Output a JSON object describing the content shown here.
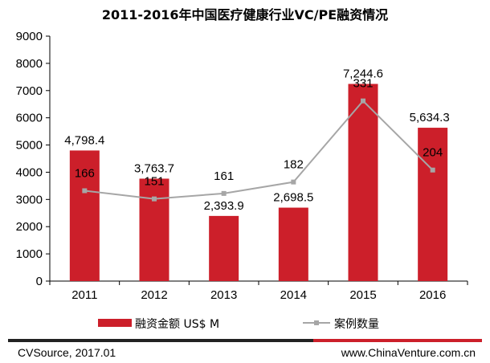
{
  "chart_data": {
    "type": "bar",
    "title": "2011-2016年中国医疗健康行业VC/PE融资情况",
    "categories": [
      "2011",
      "2012",
      "2013",
      "2014",
      "2015",
      "2016"
    ],
    "ylim": [
      0,
      9000
    ],
    "yticks": [
      "0",
      "1000",
      "2000",
      "3000",
      "4000",
      "5000",
      "6000",
      "7000",
      "8000",
      "9000"
    ],
    "grid": false,
    "legend_position": "bottom",
    "series": [
      {
        "name": "融资金额 US$ M",
        "type": "bar",
        "color": "#cc1f2a",
        "values": [
          4798.4,
          3763.7,
          2393.9,
          2698.5,
          7244.6,
          5634.3
        ],
        "labels": [
          "4,798.4",
          "3,763.7",
          "2,393.9",
          "2,698.5",
          "7,244.6",
          "5,634.3"
        ]
      },
      {
        "name": "案例数量",
        "type": "line",
        "color": "#a6a6a6",
        "values": [
          166,
          151,
          161,
          182,
          331,
          204
        ],
        "labels": [
          "166",
          "151",
          "161",
          "182",
          "331",
          "204"
        ]
      }
    ]
  },
  "footer": {
    "source": "CVSource, 2017.01",
    "website": "www.ChinaVenture.com.cn"
  },
  "colors": {
    "accent_red": "#cc1f2a",
    "line_gray": "#a6a6a6",
    "divider_dark": "#222222"
  }
}
